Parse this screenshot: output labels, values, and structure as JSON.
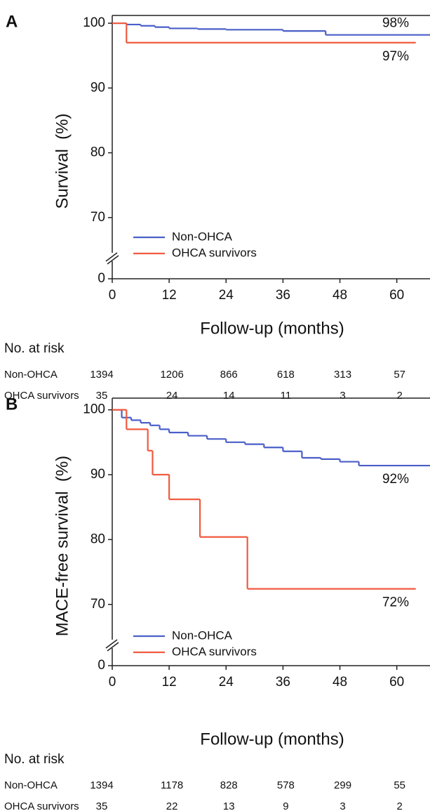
{
  "chart_data": [
    {
      "type": "line",
      "step": true,
      "panel": "A",
      "y_label": "Survival  (%)",
      "x_label": "Follow-up (months)",
      "xlim": [
        0,
        67
      ],
      "ylim": [
        0,
        101.2
      ],
      "y_break": [
        0,
        65
      ],
      "xticks": [
        0,
        12,
        24,
        36,
        48,
        60
      ],
      "yticks": [
        0,
        70,
        80,
        90,
        100
      ],
      "legend": "lower left",
      "series": [
        {
          "name": "Non-OHCA",
          "color": "#4a5fc8",
          "end_label": "98%",
          "x": [
            0,
            3,
            6,
            9,
            12,
            18,
            24,
            36,
            45,
            67
          ],
          "values": [
            100,
            99.8,
            99.6,
            99.4,
            99.2,
            99.1,
            99.0,
            98.8,
            98.2,
            98.2
          ]
        },
        {
          "name": "OHCA survivors",
          "color": "#f05a40",
          "end_label": "97%",
          "x": [
            0,
            3,
            64
          ],
          "values": [
            100,
            97,
            97
          ]
        }
      ],
      "risk_table": {
        "title": "No. at risk",
        "rows": [
          {
            "name": "Non-OHCA",
            "values": [
              1394,
              1206,
              866,
              618,
              313,
              57
            ]
          },
          {
            "name": "OHCA survivors",
            "values": [
              35,
              24,
              14,
              11,
              3,
              2
            ]
          }
        ]
      }
    },
    {
      "type": "line",
      "step": true,
      "panel": "B",
      "y_label": "MACE-free survival  (%)",
      "x_label": "Follow-up (months)",
      "xlim": [
        0,
        67
      ],
      "ylim": [
        0,
        101.8
      ],
      "y_break": [
        0,
        65
      ],
      "xticks": [
        0,
        12,
        24,
        36,
        48,
        60
      ],
      "yticks": [
        0,
        70,
        80,
        90,
        100
      ],
      "legend": "lower left",
      "series": [
        {
          "name": "Non-OHCA",
          "color": "#4a5fc8",
          "end_label": "92%",
          "x": [
            0,
            2,
            4,
            6,
            8,
            10,
            12,
            16,
            20,
            24,
            28,
            32,
            36,
            40,
            44,
            48,
            52,
            67
          ],
          "values": [
            100,
            98.8,
            98.4,
            98.0,
            97.6,
            97.0,
            96.5,
            96.0,
            95.5,
            95.0,
            94.7,
            94.2,
            93.6,
            92.6,
            92.4,
            92.0,
            91.4,
            91.4
          ]
        },
        {
          "name": "OHCA survivors",
          "color": "#f05a40",
          "end_label": "72%",
          "x": [
            0,
            3,
            7.5,
            8.5,
            12,
            18.5,
            28.5,
            64
          ],
          "values": [
            100,
            97,
            93.7,
            90,
            86.2,
            80.4,
            72.4,
            72.4
          ]
        }
      ],
      "risk_table": {
        "title": "No. at risk",
        "rows": [
          {
            "name": "Non-OHCA",
            "values": [
              1394,
              1178,
              828,
              578,
              299,
              55
            ]
          },
          {
            "name": "OHCA survivors",
            "values": [
              35,
              22,
              13,
              9,
              3,
              2
            ]
          }
        ]
      }
    }
  ]
}
